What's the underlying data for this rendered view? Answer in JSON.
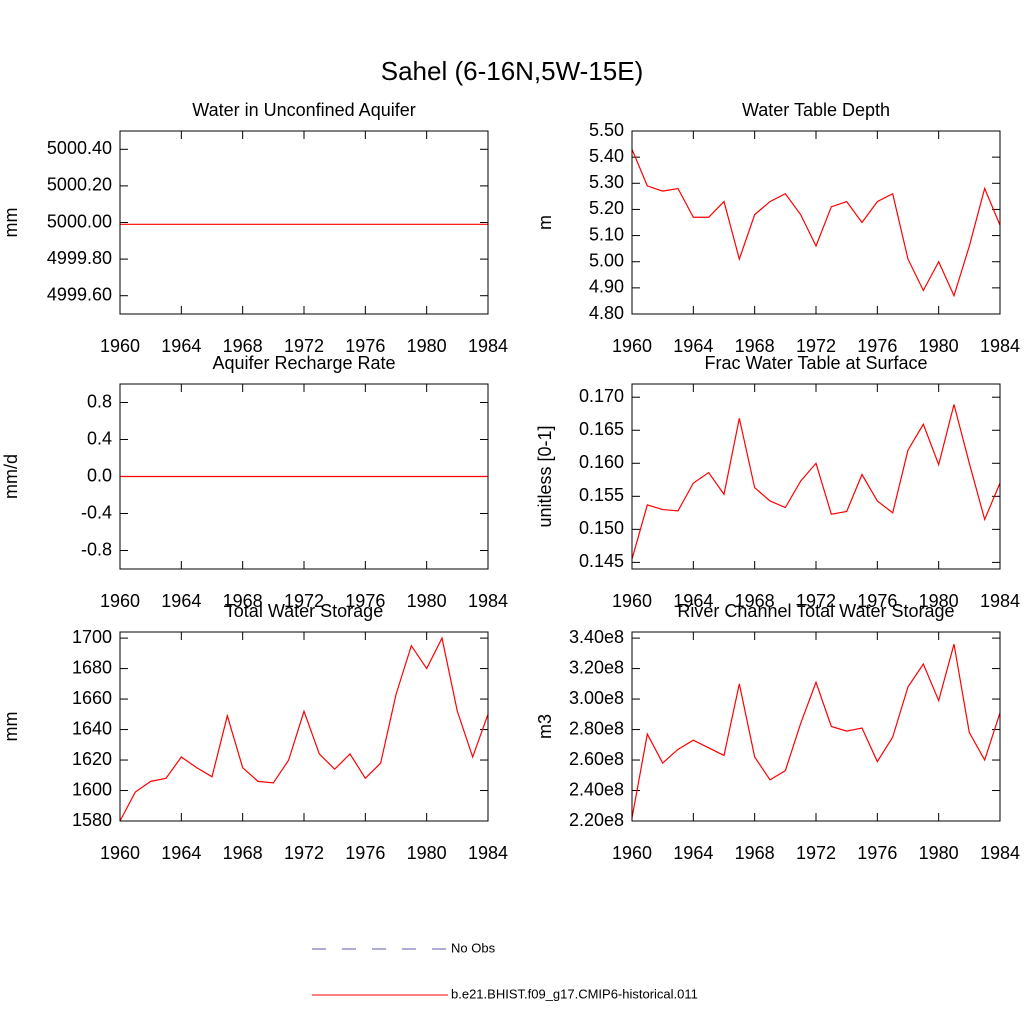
{
  "title": "Sahel (6-16N,5W-15E)",
  "chart_data": [
    {
      "type": "line",
      "title": "Water in Unconfined Aquifer",
      "ylabel": "mm",
      "color": "#ff0000",
      "x": [
        1960,
        1961,
        1962,
        1963,
        1964,
        1965,
        1966,
        1967,
        1968,
        1969,
        1970,
        1971,
        1972,
        1973,
        1974,
        1975,
        1976,
        1977,
        1978,
        1979,
        1980,
        1981,
        1982,
        1983,
        1984
      ],
      "values": [
        4999.99,
        4999.99,
        4999.99,
        4999.99,
        4999.99,
        4999.99,
        4999.99,
        4999.99,
        4999.99,
        4999.99,
        4999.99,
        4999.99,
        4999.99,
        4999.99,
        4999.99,
        4999.99,
        4999.99,
        4999.99,
        4999.99,
        4999.99,
        4999.99,
        4999.99,
        4999.99,
        4999.99,
        4999.99
      ],
      "xlim": [
        1960,
        1984
      ],
      "xticks": [
        1960,
        1964,
        1968,
        1972,
        1976,
        1980,
        1984
      ],
      "ylim": [
        4999.5,
        5000.5
      ],
      "yticks": [
        {
          "value": 4999.6,
          "label": "4999.60"
        },
        {
          "value": 4999.8,
          "label": "4999.80"
        },
        {
          "value": 5000,
          "label": "5000.00"
        },
        {
          "value": 5000.2,
          "label": "5000.20"
        },
        {
          "value": 5000.4,
          "label": "5000.40"
        }
      ]
    },
    {
      "type": "line",
      "title": "Water Table Depth",
      "ylabel": "m",
      "color": "#ff0000",
      "x": [
        1960,
        1961,
        1962,
        1963,
        1964,
        1965,
        1966,
        1967,
        1968,
        1969,
        1970,
        1971,
        1972,
        1973,
        1974,
        1975,
        1976,
        1977,
        1978,
        1979,
        1980,
        1981,
        1982,
        1983,
        1984
      ],
      "values": [
        5.43,
        5.29,
        5.27,
        5.28,
        5.17,
        5.17,
        5.23,
        5.01,
        5.18,
        5.23,
        5.26,
        5.18,
        5.06,
        5.21,
        5.23,
        5.15,
        5.23,
        5.26,
        5.01,
        4.89,
        5.0,
        4.87,
        5.06,
        5.28,
        5.14
      ],
      "xlim": [
        1960,
        1984
      ],
      "xticks": [
        1960,
        1964,
        1968,
        1972,
        1976,
        1980,
        1984
      ],
      "ylim": [
        4.8,
        5.5
      ],
      "yticks": [
        {
          "value": 4.8,
          "label": "4.80"
        },
        {
          "value": 4.9,
          "label": "4.90"
        },
        {
          "value": 5.0,
          "label": "5.00"
        },
        {
          "value": 5.1,
          "label": "5.10"
        },
        {
          "value": 5.2,
          "label": "5.20"
        },
        {
          "value": 5.3,
          "label": "5.30"
        },
        {
          "value": 5.4,
          "label": "5.40"
        },
        {
          "value": 5.5,
          "label": "5.50"
        }
      ]
    },
    {
      "type": "line",
      "title": "Aquifer Recharge Rate",
      "ylabel": "mm/d",
      "color": "#ff0000",
      "x": [
        1960,
        1961,
        1962,
        1963,
        1964,
        1965,
        1966,
        1967,
        1968,
        1969,
        1970,
        1971,
        1972,
        1973,
        1974,
        1975,
        1976,
        1977,
        1978,
        1979,
        1980,
        1981,
        1982,
        1983,
        1984
      ],
      "values": [
        0,
        0,
        0,
        0,
        0,
        0,
        0,
        0,
        0,
        0,
        0,
        0,
        0,
        0,
        0,
        0,
        0,
        0,
        0,
        0,
        0,
        0,
        0,
        0,
        0
      ],
      "xlim": [
        1960,
        1984
      ],
      "xticks": [
        1960,
        1964,
        1968,
        1972,
        1976,
        1980,
        1984
      ],
      "ylim": [
        -1,
        1
      ],
      "yticks": [
        -0.8,
        -0.4,
        {
          "value": 0,
          "label": "0.0"
        },
        0.4,
        0.8
      ]
    },
    {
      "type": "line",
      "title": "Frac Water Table at Surface",
      "ylabel": "unitless [0-1]",
      "color": "#ff0000",
      "x": [
        1960,
        1961,
        1962,
        1963,
        1964,
        1965,
        1966,
        1967,
        1968,
        1969,
        1970,
        1971,
        1972,
        1973,
        1974,
        1975,
        1976,
        1977,
        1978,
        1979,
        1980,
        1981,
        1982,
        1983,
        1984
      ],
      "values": [
        0.1455,
        0.1537,
        0.153,
        0.1528,
        0.157,
        0.1586,
        0.1553,
        0.1668,
        0.1563,
        0.1543,
        0.1533,
        0.1573,
        0.16,
        0.1523,
        0.1527,
        0.1583,
        0.1543,
        0.1525,
        0.162,
        0.1659,
        0.1598,
        0.1689,
        0.16,
        0.1515,
        0.157
      ],
      "xlim": [
        1960,
        1984
      ],
      "xticks": [
        1960,
        1964,
        1968,
        1972,
        1976,
        1980,
        1984
      ],
      "ylim": [
        0.144,
        0.172
      ],
      "yticks": [
        {
          "value": 0.145,
          "label": "0.145"
        },
        {
          "value": 0.15,
          "label": "0.150"
        },
        {
          "value": 0.155,
          "label": "0.155"
        },
        {
          "value": 0.16,
          "label": "0.160"
        },
        {
          "value": 0.165,
          "label": "0.165"
        },
        {
          "value": 0.17,
          "label": "0.170"
        }
      ]
    },
    {
      "type": "line",
      "title": "Total Water Storage",
      "ylabel": "mm",
      "color": "#ff0000",
      "x": [
        1960,
        1961,
        1962,
        1963,
        1964,
        1965,
        1966,
        1967,
        1968,
        1969,
        1970,
        1971,
        1972,
        1973,
        1974,
        1975,
        1976,
        1977,
        1978,
        1979,
        1980,
        1981,
        1982,
        1983,
        1984
      ],
      "values": [
        1580,
        1599,
        1606,
        1608,
        1622,
        1615,
        1609,
        1649,
        1615,
        1606,
        1605,
        1620,
        1652,
        1624,
        1614,
        1624,
        1608,
        1618,
        1663,
        1695,
        1680,
        1700,
        1652,
        1622,
        1650
      ],
      "xlim": [
        1960,
        1984
      ],
      "xticks": [
        1960,
        1964,
        1968,
        1972,
        1976,
        1980,
        1984
      ],
      "ylim": [
        1580,
        1704
      ],
      "yticks": [
        1580,
        1600,
        1620,
        1640,
        1660,
        1680,
        1700
      ]
    },
    {
      "type": "line",
      "title": "River Channel Total Water Storage",
      "ylabel": "m3",
      "color": "#ff0000",
      "x": [
        1960,
        1961,
        1962,
        1963,
        1964,
        1965,
        1966,
        1967,
        1968,
        1969,
        1970,
        1971,
        1972,
        1973,
        1974,
        1975,
        1976,
        1977,
        1978,
        1979,
        1980,
        1981,
        1982,
        1983,
        1984
      ],
      "values": [
        222000000,
        277000000,
        258000000,
        267000000,
        273000000,
        268000000,
        263000000,
        310000000,
        262000000,
        247000000,
        253000000,
        284000000,
        311000000,
        282000000,
        279000000,
        281000000,
        259000000,
        275000000,
        308000000,
        323000000,
        299000000,
        336000000,
        278000000,
        260000000,
        291000000
      ],
      "xlim": [
        1960,
        1984
      ],
      "xticks": [
        1960,
        1964,
        1968,
        1972,
        1976,
        1980,
        1984
      ],
      "ylim": [
        220000000,
        344000000
      ],
      "yticks": [
        {
          "value": 220000000,
          "label": "2.20e8"
        },
        {
          "value": 240000000,
          "label": "2.40e8"
        },
        {
          "value": 260000000,
          "label": "2.60e8"
        },
        {
          "value": 280000000,
          "label": "2.80e8"
        },
        {
          "value": 300000000,
          "label": "3.00e8"
        },
        {
          "value": 320000000,
          "label": "3.20e8"
        },
        {
          "value": 340000000,
          "label": "3.40e8"
        }
      ]
    }
  ],
  "legend": [
    {
      "name": "No Obs",
      "color": "#5a5aa8",
      "dashed": true
    },
    {
      "name": "b.e21.BHIST.f09_g17.CMIP6-historical.011",
      "color": "#ff0000",
      "dashed": false
    }
  ]
}
